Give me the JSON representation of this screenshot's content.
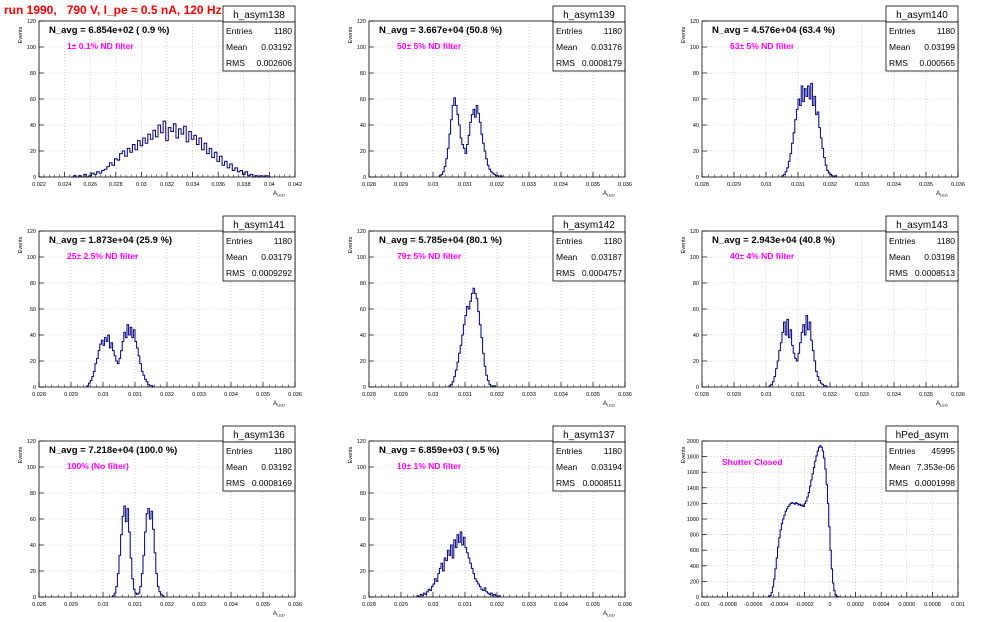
{
  "page": {
    "title": "run 1990,   790 V, I_pe ≈ 0.5 nA, 120 Hz"
  },
  "colors": {
    "title": "#ff0000",
    "histogram_line": "#000080",
    "annotation": "#ff00ff",
    "grid": "#b0b0b0",
    "frame": "#000000"
  },
  "chart_data": [
    {
      "type": "histogram",
      "name": "h_asym138",
      "ylabel": "Events",
      "xlabel": "A_LED",
      "xlim": [
        0.022,
        0.042
      ],
      "ylim": [
        0,
        120
      ],
      "xticks": [
        0.022,
        0.024,
        0.026,
        0.028,
        0.03,
        0.032,
        0.034,
        0.036,
        0.038,
        0.04,
        0.042
      ],
      "xtick_labels": [
        "0.022",
        "0.024",
        "0.026",
        "0.028",
        "0.03",
        "0.032",
        "0.034",
        "0.036",
        "0.038",
        "0.04",
        "0.042"
      ],
      "yticks": [
        0,
        20,
        40,
        60,
        80,
        100,
        120
      ],
      "grid": true,
      "stats": {
        "entries_label": "Entries",
        "entries": "1180",
        "mean_label": "Mean",
        "mean": "0.03192",
        "rms_label": "RMS",
        "rms": "0.002606"
      },
      "navg_text": "N_avg = 6.854e+02 ( 0.9 %)",
      "filter_text": "1± 0.1% ND filter",
      "bins": {
        "x0": 0.0245,
        "dx": 0.0002,
        "counts": [
          0,
          1,
          0,
          1,
          0,
          2,
          0,
          1,
          3,
          2,
          4,
          3,
          5,
          6,
          8,
          11,
          9,
          14,
          13,
          18,
          20,
          16,
          22,
          19,
          25,
          21,
          28,
          24,
          30,
          26,
          33,
          29,
          36,
          31,
          40,
          34,
          43,
          28,
          38,
          35,
          41,
          30,
          37,
          33,
          39,
          27,
          35,
          29,
          32,
          25,
          30,
          21,
          26,
          18,
          22,
          15,
          19,
          12,
          16,
          9,
          12,
          7,
          10,
          5,
          7,
          4,
          5,
          2,
          4,
          1,
          2,
          0,
          1,
          0,
          1,
          0,
          1,
          0
        ]
      }
    },
    {
      "type": "histogram",
      "name": "h_asym139",
      "ylabel": "Events",
      "xlabel": "A_LED",
      "xlim": [
        0.028,
        0.036
      ],
      "ylim": [
        0,
        120
      ],
      "xticks": [
        0.028,
        0.029,
        0.03,
        0.031,
        0.032,
        0.033,
        0.034,
        0.035,
        0.036
      ],
      "xtick_labels": [
        "0.028",
        "0.029",
        "0.03",
        "0.031",
        "0.032",
        "0.033",
        "0.034",
        "0.035",
        "0.036"
      ],
      "yticks": [
        0,
        20,
        40,
        60,
        80,
        100,
        120
      ],
      "grid": true,
      "stats": {
        "entries_label": "Entries",
        "entries": "1180",
        "mean_label": "Mean",
        "mean": "0.03176",
        "rms_label": "RMS",
        "rms": "0.0008179"
      },
      "navg_text": "N_avg = 3.667e+04 (50.8 %)",
      "filter_text": "50± 5% ND filter",
      "bins": {
        "x0": 0.0302,
        "dx": 5e-05,
        "counts": [
          1,
          2,
          4,
          8,
          14,
          22,
          33,
          44,
          55,
          61,
          55,
          48,
          40,
          30,
          25,
          22,
          18,
          25,
          32,
          42,
          48,
          52,
          46,
          55,
          49,
          42,
          33,
          26,
          20,
          14,
          9,
          6,
          4,
          3,
          2,
          1,
          1,
          0,
          1,
          0
        ]
      }
    },
    {
      "type": "histogram",
      "name": "h_asym140",
      "ylabel": "Events",
      "xlabel": "A_LED",
      "xlim": [
        0.028,
        0.036
      ],
      "ylim": [
        0,
        120
      ],
      "xticks": [
        0.028,
        0.029,
        0.03,
        0.031,
        0.032,
        0.033,
        0.034,
        0.035,
        0.036
      ],
      "xtick_labels": [
        "0.028",
        "0.029",
        "0.03",
        "0.031",
        "0.032",
        "0.033",
        "0.034",
        "0.035",
        "0.036"
      ],
      "yticks": [
        0,
        20,
        40,
        60,
        80,
        100,
        120
      ],
      "grid": true,
      "stats": {
        "entries_label": "Entries",
        "entries": "1180",
        "mean_label": "Mean",
        "mean": "0.03199",
        "rms_label": "RMS",
        "rms": "0.000565"
      },
      "navg_text": "N_avg = 4.576e+04 (63.4 %)",
      "filter_text": "63± 5% ND filter",
      "bins": {
        "x0": 0.0305,
        "dx": 5e-05,
        "counts": [
          1,
          2,
          4,
          7,
          12,
          18,
          26,
          34,
          44,
          52,
          60,
          55,
          70,
          58,
          68,
          62,
          70,
          60,
          72,
          55,
          62,
          48,
          50,
          38,
          30,
          22,
          15,
          9,
          5,
          3,
          2,
          1,
          0,
          1
        ]
      }
    },
    {
      "type": "histogram",
      "name": "h_asym141",
      "ylabel": "Events",
      "xlabel": "A_LED",
      "xlim": [
        0.028,
        0.036
      ],
      "ylim": [
        0,
        120
      ],
      "xticks": [
        0.028,
        0.029,
        0.03,
        0.031,
        0.032,
        0.033,
        0.034,
        0.035,
        0.036
      ],
      "xtick_labels": [
        "0.028",
        "0.029",
        "0.03",
        "0.031",
        "0.032",
        "0.033",
        "0.034",
        "0.035",
        "0.036"
      ],
      "yticks": [
        0,
        20,
        40,
        60,
        80,
        100,
        120
      ],
      "grid": true,
      "stats": {
        "entries_label": "Entries",
        "entries": "1180",
        "mean_label": "Mean",
        "mean": "0.03179",
        "rms_label": "RMS",
        "rms": "0.0009292"
      },
      "navg_text": "N_avg = 1.873e+04 (25.9 %)",
      "filter_text": "25± 2.5% ND filter",
      "bins": {
        "x0": 0.0295,
        "dx": 5e-05,
        "counts": [
          1,
          3,
          5,
          8,
          12,
          18,
          22,
          28,
          33,
          36,
          32,
          38,
          35,
          40,
          30,
          34,
          28,
          24,
          20,
          18,
          22,
          28,
          35,
          42,
          38,
          48,
          40,
          46,
          38,
          44,
          35,
          30,
          24,
          18,
          12,
          9,
          6,
          4,
          2,
          1,
          1,
          0
        ]
      }
    },
    {
      "type": "histogram",
      "name": "h_asym142",
      "ylabel": "Events",
      "xlabel": "A_LED",
      "xlim": [
        0.028,
        0.036
      ],
      "ylim": [
        0,
        120
      ],
      "xticks": [
        0.028,
        0.029,
        0.03,
        0.031,
        0.032,
        0.033,
        0.034,
        0.035,
        0.036
      ],
      "xtick_labels": [
        "0.028",
        "0.029",
        "0.03",
        "0.031",
        "0.032",
        "0.033",
        "0.034",
        "0.035",
        "0.036"
      ],
      "yticks": [
        0,
        20,
        40,
        60,
        80,
        100,
        120
      ],
      "grid": true,
      "stats": {
        "entries_label": "Entries",
        "entries": "1180",
        "mean_label": "Mean",
        "mean": "0.03187",
        "rms_label": "RMS",
        "rms": "0.0004757"
      },
      "navg_text": "N_avg = 5.785e+04 (80.1 %)",
      "filter_text": "79± 5% ND filter",
      "bins": {
        "x0": 0.0305,
        "dx": 5e-05,
        "counts": [
          1,
          2,
          4,
          8,
          13,
          19,
          26,
          32,
          40,
          48,
          55,
          62,
          60,
          66,
          72,
          76,
          72,
          68,
          58,
          48,
          38,
          26,
          16,
          9,
          5,
          2,
          1,
          0,
          1
        ]
      }
    },
    {
      "type": "histogram",
      "name": "h_asym143",
      "ylabel": "Events",
      "xlabel": "A_LED",
      "xlim": [
        0.028,
        0.036
      ],
      "ylim": [
        0,
        120
      ],
      "xticks": [
        0.028,
        0.029,
        0.03,
        0.031,
        0.032,
        0.033,
        0.034,
        0.035,
        0.036
      ],
      "xtick_labels": [
        "0.028",
        "0.029",
        "0.03",
        "0.031",
        "0.032",
        "0.033",
        "0.034",
        "0.035",
        "0.036"
      ],
      "yticks": [
        0,
        20,
        40,
        60,
        80,
        100,
        120
      ],
      "grid": true,
      "stats": {
        "entries_label": "Entries",
        "entries": "1180",
        "mean_label": "Mean",
        "mean": "0.03198",
        "rms_label": "RMS",
        "rms": "0.0008513"
      },
      "navg_text": "N_avg = 2.943e+04 (40.8 %)",
      "filter_text": "40± 4% ND filter",
      "bins": {
        "x0": 0.0301,
        "dx": 5e-05,
        "counts": [
          1,
          2,
          4,
          8,
          14,
          20,
          28,
          34,
          42,
          50,
          40,
          52,
          38,
          44,
          32,
          26,
          22,
          20,
          26,
          34,
          42,
          48,
          40,
          55,
          44,
          50,
          36,
          28,
          20,
          12,
          8,
          5,
          3,
          2,
          1,
          1,
          0
        ]
      }
    },
    {
      "type": "histogram",
      "name": "h_asym136",
      "ylabel": "Events",
      "xlabel": "A_LED",
      "xlim": [
        0.028,
        0.036
      ],
      "ylim": [
        0,
        120
      ],
      "xticks": [
        0.028,
        0.029,
        0.03,
        0.031,
        0.032,
        0.033,
        0.034,
        0.035,
        0.036
      ],
      "xtick_labels": [
        "0.028",
        "0.029",
        "0.03",
        "0.031",
        "0.032",
        "0.033",
        "0.034",
        "0.035",
        "0.036"
      ],
      "yticks": [
        0,
        20,
        40,
        60,
        80,
        100,
        120
      ],
      "grid": true,
      "stats": {
        "entries_label": "Entries",
        "entries": "1180",
        "mean_label": "Mean",
        "mean": "0.03192",
        "rms_label": "RMS",
        "rms": "0.0008169"
      },
      "navg_text": "N_avg = 7.218e+04 (100.0 %)",
      "filter_text": "100% (No filter)",
      "bins": {
        "x0": 0.0303,
        "dx": 5e-05,
        "counts": [
          1,
          3,
          8,
          18,
          32,
          48,
          62,
          70,
          58,
          68,
          50,
          30,
          14,
          6,
          3,
          2,
          3,
          8,
          18,
          32,
          50,
          64,
          68,
          60,
          66,
          52,
          34,
          18,
          8,
          4,
          2,
          1,
          0
        ]
      }
    },
    {
      "type": "histogram",
      "name": "h_asym137",
      "ylabel": "Events",
      "xlabel": "A_LED",
      "xlim": [
        0.028,
        0.036
      ],
      "ylim": [
        0,
        120
      ],
      "xticks": [
        0.028,
        0.029,
        0.03,
        0.031,
        0.032,
        0.033,
        0.034,
        0.035,
        0.036
      ],
      "xtick_labels": [
        "0.028",
        "0.029",
        "0.03",
        "0.031",
        "0.032",
        "0.033",
        "0.034",
        "0.035",
        "0.036"
      ],
      "yticks": [
        0,
        20,
        40,
        60,
        80,
        100,
        120
      ],
      "grid": true,
      "stats": {
        "entries_label": "Entries",
        "entries": "1180",
        "mean_label": "Mean",
        "mean": "0.03194",
        "rms_label": "RMS",
        "rms": "0.0008511"
      },
      "navg_text": "N_avg = 6.859e+03 ( 9.5 %)",
      "filter_text": "10± 1% ND filter",
      "bins": {
        "x0": 0.0295,
        "dx": 5e-05,
        "counts": [
          1,
          0,
          2,
          1,
          3,
          2,
          4,
          6,
          5,
          8,
          10,
          14,
          12,
          18,
          22,
          26,
          20,
          30,
          28,
          36,
          32,
          40,
          30,
          44,
          38,
          48,
          42,
          50,
          40,
          46,
          38,
          34,
          30,
          26,
          22,
          18,
          14,
          12,
          10,
          8,
          6,
          5,
          7,
          4,
          3,
          2,
          3,
          1,
          2,
          1,
          0,
          1
        ]
      }
    },
    {
      "type": "histogram",
      "name": "hPed_asym",
      "ylabel": "Events",
      "xlabel": "",
      "xlim": [
        -0.001,
        0.001
      ],
      "ylim": [
        0,
        2000
      ],
      "xticks": [
        -0.001,
        -0.0008,
        -0.0006,
        -0.0004,
        -0.0002,
        0,
        0.0002,
        0.0004,
        0.0006,
        0.0008,
        0.001
      ],
      "xtick_labels": [
        "-0.001",
        "-0.0008",
        "-0.0006",
        "-0.0004",
        "-0.0002",
        "0",
        "0.0002",
        "0.0004",
        "0.0006",
        "0.0008",
        "0.001"
      ],
      "yticks": [
        0,
        200,
        400,
        600,
        800,
        1000,
        1200,
        1400,
        1600,
        1800,
        2000
      ],
      "grid": true,
      "stats": {
        "entries_label": "Entries",
        "entries": "45995",
        "mean_label": "Mean",
        "mean": "7.353e-06",
        "rms_label": "RMS",
        "rms": "0.0001998"
      },
      "navg_text": "",
      "filter_text": "Shutter Closed",
      "bins": {
        "x0": -0.00048,
        "dx": 1e-05,
        "counts": [
          5,
          20,
          60,
          130,
          230,
          360,
          500,
          640,
          760,
          860,
          940,
          1000,
          1050,
          1100,
          1130,
          1160,
          1180,
          1200,
          1210,
          1200,
          1190,
          1210,
          1200,
          1180,
          1190,
          1170,
          1180,
          1160,
          1200,
          1230,
          1280,
          1340,
          1420,
          1500,
          1580,
          1660,
          1740,
          1810,
          1870,
          1920,
          1940,
          1920,
          1870,
          1780,
          1640,
          1440,
          1200,
          900,
          600,
          360,
          180,
          80,
          30,
          10,
          3
        ]
      }
    }
  ]
}
